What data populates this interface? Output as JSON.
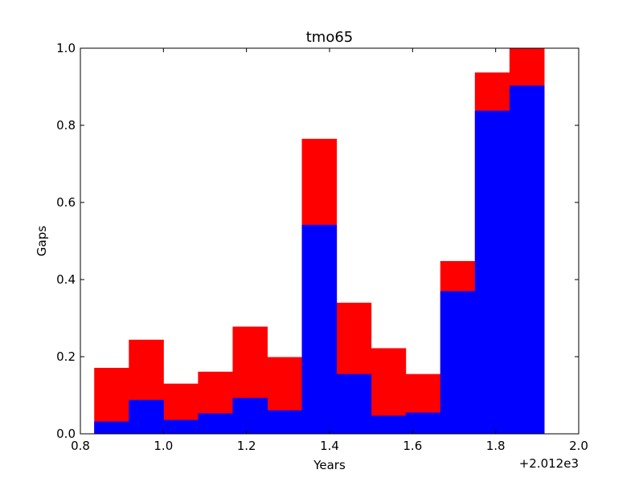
{
  "chart_data": {
    "type": "bar",
    "title": "tmo65",
    "xlabel": "Years",
    "ylabel": "Gaps",
    "x_offset_label": "+2.012e3",
    "xlim": [
      0.8,
      2.0
    ],
    "ylim": [
      0.0,
      1.0
    ],
    "x_ticks": [
      "0.8",
      "1.0",
      "1.2",
      "1.4",
      "1.6",
      "1.8",
      "2.0"
    ],
    "y_ticks": [
      "0.0",
      "0.2",
      "0.4",
      "0.6",
      "0.8",
      "1.0"
    ],
    "bin_edges": [
      0.8333,
      0.9167,
      1.0,
      1.0833,
      1.1667,
      1.25,
      1.3333,
      1.4167,
      1.5,
      1.5833,
      1.6667,
      1.75,
      1.8333,
      1.9167
    ],
    "grid": false,
    "series": [
      {
        "color": "#0000ff",
        "values": [
          0.032,
          0.088,
          0.036,
          0.053,
          0.093,
          0.061,
          0.542,
          0.155,
          0.047,
          0.055,
          0.37,
          0.838,
          0.903
        ]
      },
      {
        "color": "#ff0000",
        "values": [
          0.171,
          0.244,
          0.13,
          0.161,
          0.278,
          0.199,
          0.765,
          0.34,
          0.222,
          0.155,
          0.448,
          0.937,
          1.0
        ]
      }
    ]
  }
}
